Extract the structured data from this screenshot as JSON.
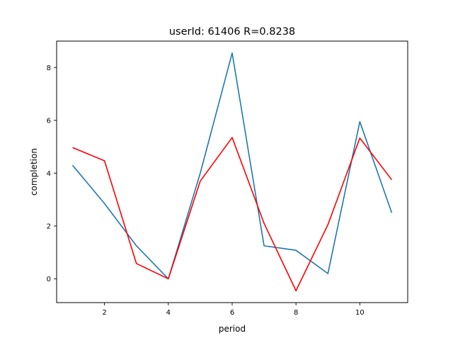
{
  "chart_data": {
    "type": "line",
    "title": "userId: 61406  R=0.8238",
    "xlabel": "period",
    "ylabel": "completion",
    "xlim": [
      0.5,
      11.5
    ],
    "ylim": [
      -0.9,
      9.0
    ],
    "xticks": [
      2,
      4,
      6,
      8,
      10
    ],
    "yticks": [
      0,
      2,
      4,
      6,
      8
    ],
    "grid": false,
    "x": [
      1,
      2,
      3,
      4,
      5,
      6,
      7,
      8,
      9,
      10,
      11
    ],
    "series": [
      {
        "color": "#1f77b4",
        "values": [
          4.3,
          2.85,
          1.25,
          0.0,
          4.0,
          8.55,
          1.25,
          1.08,
          0.2,
          5.95,
          2.5
        ]
      },
      {
        "color": "#ff0000",
        "values": [
          4.97,
          4.47,
          0.58,
          0.0,
          3.7,
          5.35,
          2.1,
          -0.45,
          2.05,
          5.33,
          3.75
        ]
      }
    ]
  }
}
